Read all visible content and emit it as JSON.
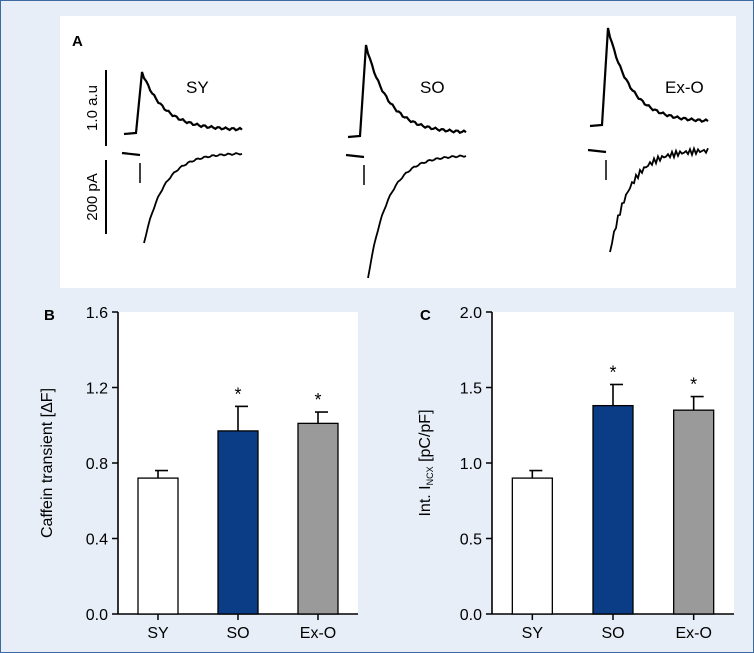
{
  "panel_a": {
    "letter": "A",
    "scale_top": "1.0 a.u",
    "scale_bottom": "200 pA",
    "traces": [
      {
        "label": "SY",
        "peak_rel": 0.75,
        "current_rel": 0.65,
        "noise": 0.0
      },
      {
        "label": "SO",
        "peak_rel": 1.0,
        "current_rel": 1.05,
        "noise": 0.0
      },
      {
        "label": "Ex-O",
        "peak_rel": 1.05,
        "current_rel": 0.78,
        "noise": 1.0
      }
    ]
  },
  "colors": {
    "SY": "#ffffff",
    "SO": "#0b3d86",
    "Ex-O": "#9a9a9a",
    "frame": "#3d6aa0",
    "background": "#e7eef8"
  },
  "chart_data": [
    {
      "type": "bar",
      "panel": "B",
      "categories": [
        "SY",
        "SO",
        "Ex-O"
      ],
      "values": [
        0.72,
        0.97,
        1.01
      ],
      "errors": [
        0.04,
        0.13,
        0.06
      ],
      "significant": [
        false,
        true,
        true
      ],
      "ylim": [
        0.0,
        1.6
      ],
      "yticks": [
        "0.0",
        "0.4",
        "0.8",
        "1.2",
        "1.6"
      ],
      "ylabel": "Caffein transient [ΔF]",
      "xlabel": ""
    },
    {
      "type": "bar",
      "panel": "C",
      "categories": [
        "SY",
        "SO",
        "Ex-O"
      ],
      "values": [
        0.9,
        1.38,
        1.35
      ],
      "errors": [
        0.05,
        0.14,
        0.09
      ],
      "significant": [
        false,
        true,
        true
      ],
      "ylim": [
        0.0,
        2.0
      ],
      "yticks": [
        "0.0",
        "0.5",
        "1.0",
        "1.5",
        "2.0"
      ],
      "ylabel_main": "Int. I",
      "ylabel_sub": "NCX",
      "ylabel_tail": " [pC/pF]",
      "xlabel": ""
    }
  ]
}
